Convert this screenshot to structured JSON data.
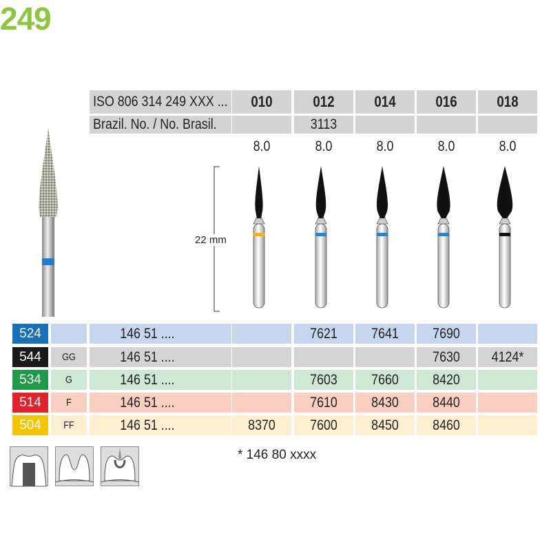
{
  "figure_number": "249",
  "header": {
    "iso_label": "ISO 806 314 249 XXX ...",
    "sizes": [
      "010",
      "012",
      "014",
      "016",
      "018"
    ],
    "brazil_label": "Brazil. No. / No. Brasil.",
    "brazil_values": [
      "",
      "3113",
      "",
      "",
      ""
    ],
    "lengths": [
      "8.0",
      "8.0",
      "8.0",
      "8.0",
      "8.0"
    ]
  },
  "dimension_label": "22 mm",
  "bur_ring_colors": [
    "#f5b800",
    "#1e88d0",
    "#1e88d0",
    "#1e88d0",
    "#111111"
  ],
  "rows": [
    {
      "code": "524",
      "grit": "",
      "ref": "146 51 ....",
      "values": [
        "",
        "7621",
        "7641",
        "7690",
        ""
      ],
      "badge_color": "#1a6fb9",
      "row_color": "#c5d6ee"
    },
    {
      "code": "544",
      "grit": "GG",
      "ref": "146 51 ....",
      "values": [
        "",
        "",
        "",
        "7630",
        "4124*"
      ],
      "badge_color": "#1a1a1a",
      "row_color": "#d4d4d4"
    },
    {
      "code": "534",
      "grit": "G",
      "ref": "146 51 ....",
      "values": [
        "",
        "7603",
        "7660",
        "8420",
        ""
      ],
      "badge_color": "#1f9a48",
      "row_color": "#cde8d4"
    },
    {
      "code": "514",
      "grit": "F",
      "ref": "146 51 ....",
      "values": [
        "",
        "7610",
        "8430",
        "8440",
        ""
      ],
      "badge_color": "#e3212b",
      "row_color": "#f8cfc0"
    },
    {
      "code": "504",
      "grit": "FF",
      "ref": "146 51 ....",
      "values": [
        "8370",
        "7600",
        "8450",
        "8460",
        ""
      ],
      "badge_color": "#f5c400",
      "row_color": "#fdefcf"
    }
  ],
  "footnote": "*  146 80 xxxx",
  "application_icons": [
    "crown-preparation-icon",
    "cavity-preparation-icon",
    "occlusal-finishing-icon"
  ]
}
